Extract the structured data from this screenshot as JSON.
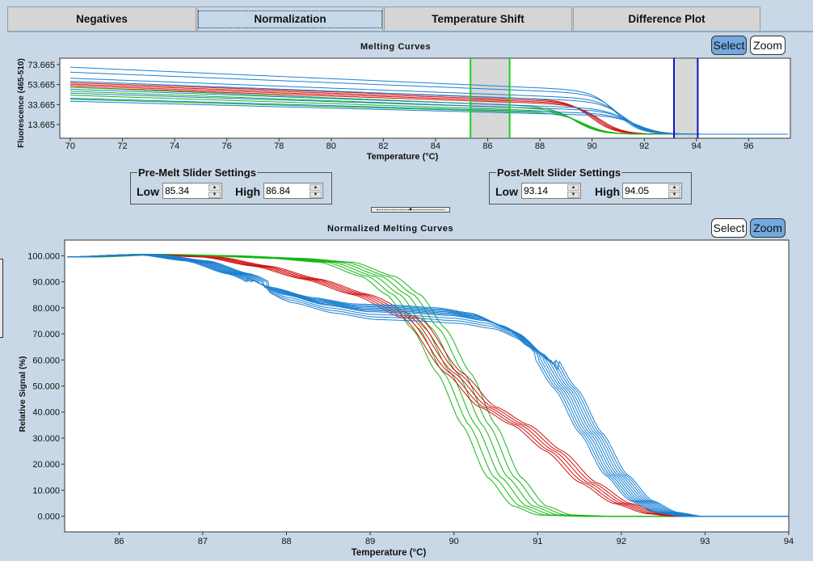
{
  "tabs": [
    {
      "label": "Negatives",
      "active": false
    },
    {
      "label": "Normalization",
      "active": true
    },
    {
      "label": "Temperature Shift",
      "active": false
    },
    {
      "label": "Difference Plot",
      "active": false
    }
  ],
  "top_panel": {
    "select_label": "Select",
    "zoom_label": "Zoom",
    "active_mode": "Select"
  },
  "pre_melt": {
    "title": "Pre-Melt Slider Settings",
    "low_label": "Low",
    "low_value": "85.34",
    "high_label": "High",
    "high_value": "86.84"
  },
  "post_melt": {
    "title": "Post-Melt Slider Settings",
    "low_label": "Low",
    "low_value": "93.14",
    "high_label": "High",
    "high_value": "94.05"
  },
  "bottom_panel": {
    "select_label": "Select",
    "zoom_label": "Zoom",
    "active_mode": "Zoom"
  },
  "colors": {
    "red": "#d01010",
    "green": "#15b515",
    "blue": "#1a7fd0",
    "slider_green": "#19d119",
    "slider_blue": "#1111c8"
  },
  "chart_data": [
    {
      "type": "line",
      "title": "Melting Curves",
      "xlabel": "Temperature (°C)",
      "ylabel": "Fluorescence (465-510)",
      "xlim": [
        69.6,
        97.6
      ],
      "ylim": [
        0,
        80
      ],
      "x_ticks": [
        "70",
        "72",
        "74",
        "76",
        "78",
        "80",
        "82",
        "84",
        "86",
        "88",
        "90",
        "92",
        "94",
        "96"
      ],
      "y_ticks": [
        "13.665",
        "33.665",
        "53.665",
        "73.665"
      ],
      "pre_melt_region": [
        85.34,
        86.84
      ],
      "post_melt_region": [
        93.14,
        94.05
      ],
      "groups": [
        {
          "color": "red",
          "count": 4,
          "start_values": [
            55.5,
            54,
            52.5,
            51
          ],
          "plateau_values": [
            37.5,
            36,
            34.5,
            33
          ],
          "melt_temperature": 90.2
        },
        {
          "color": "green",
          "count": 4,
          "start_values": [
            51,
            47,
            43,
            39
          ],
          "plateau_values": [
            30.5,
            28.5,
            26.5,
            24.5
          ],
          "melt_temperature": 89.6
        },
        {
          "color": "blue",
          "count": 8,
          "start_values": [
            71,
            66,
            60,
            57,
            49,
            45,
            40,
            37
          ],
          "plateau_values": [
            47,
            44,
            39,
            36,
            29,
            27,
            24,
            22
          ],
          "melt_temperature": 91.4
        }
      ],
      "baseline_after_melt": 4
    },
    {
      "type": "line",
      "title": "Normalized Melting Curves",
      "xlabel": "Temperature (°C)",
      "ylabel": "Relative Signal (%)",
      "xlim": [
        85.35,
        94.0
      ],
      "ylim": [
        -6,
        106
      ],
      "x_ticks": [
        "86",
        "87",
        "88",
        "89",
        "90",
        "91",
        "92",
        "93",
        "94"
      ],
      "y_ticks": [
        "0.000",
        "10.000",
        "20.000",
        "30.000",
        "40.000",
        "50.000",
        "60.000",
        "70.000",
        "80.000",
        "90.000",
        "100.000"
      ],
      "series": [
        {
          "color": "green",
          "count": 6,
          "points": [
            [
              85.35,
              99.5
            ],
            [
              86.2,
              100.5
            ],
            [
              87.0,
              100
            ],
            [
              87.8,
              99
            ],
            [
              88.4,
              97.5
            ],
            [
              88.9,
              92
            ],
            [
              89.2,
              85
            ],
            [
              89.5,
              72
            ],
            [
              89.8,
              55
            ],
            [
              90.1,
              35
            ],
            [
              90.4,
              15
            ],
            [
              90.7,
              4
            ],
            [
              91.0,
              0.5
            ],
            [
              91.5,
              0
            ],
            [
              94.0,
              0
            ]
          ],
          "x_offsets": [
            0,
            0.08,
            0.16,
            0.24,
            0.32,
            0.4
          ]
        },
        {
          "color": "red",
          "count": 5,
          "points": [
            [
              85.35,
              99.5
            ],
            [
              86.2,
              100.5
            ],
            [
              87.0,
              99.5
            ],
            [
              87.6,
              96
            ],
            [
              88.2,
              91
            ],
            [
              88.8,
              85
            ],
            [
              89.4,
              76
            ],
            [
              89.9,
              55
            ],
            [
              90.3,
              42
            ],
            [
              90.7,
              35
            ],
            [
              91.1,
              25
            ],
            [
              91.5,
              13
            ],
            [
              91.9,
              5
            ],
            [
              92.3,
              1
            ],
            [
              92.6,
              0
            ],
            [
              94.0,
              0
            ]
          ],
          "x_offsets": [
            0,
            0.05,
            0.1,
            0.15,
            0.2
          ]
        },
        {
          "color": "blue",
          "count": 10,
          "points": [
            [
              85.35,
              99.5
            ],
            [
              86.2,
              100.5
            ],
            [
              86.8,
              98
            ],
            [
              87.3,
              93
            ],
            [
              87.8,
              86
            ],
            [
              88.3,
              82
            ],
            [
              88.8,
              79.5
            ],
            [
              89.3,
              79
            ],
            [
              89.8,
              78
            ],
            [
              90.2,
              76
            ],
            [
              90.6,
              71
            ],
            [
              90.9,
              63
            ],
            [
              91.2,
              49
            ],
            [
              91.5,
              32
            ],
            [
              91.8,
              16
            ],
            [
              92.1,
              6
            ],
            [
              92.4,
              1.5
            ],
            [
              92.7,
              0
            ],
            [
              94.0,
              0
            ]
          ],
          "x_offsets": [
            0,
            0.03,
            0.06,
            0.09,
            0.12,
            0.15,
            0.18,
            0.21,
            0.24,
            0.27
          ],
          "y_offsets": [
            2,
            1.5,
            1,
            0.5,
            0,
            -0.5,
            -1,
            -2,
            -3,
            -4
          ]
        }
      ]
    }
  ]
}
